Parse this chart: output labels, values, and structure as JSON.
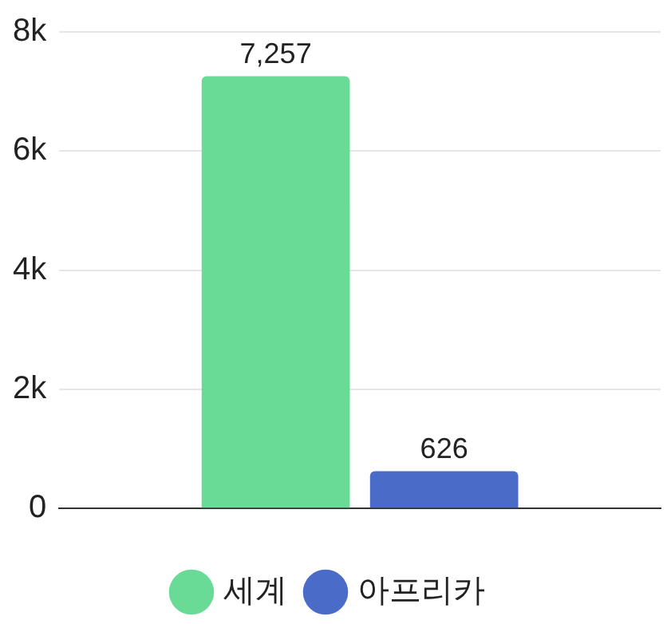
{
  "chart_data": {
    "type": "bar",
    "categories": [
      null
    ],
    "series": [
      {
        "name": "세계",
        "color": "#6adb97",
        "values": [
          7257
        ],
        "value_labels": [
          "7,257"
        ]
      },
      {
        "name": "아프리카",
        "color": "#4a6cc8",
        "values": [
          626
        ],
        "value_labels": [
          "626"
        ]
      }
    ],
    "ylim": [
      0,
      8000
    ],
    "yticks": [
      {
        "value": 0,
        "label": "0"
      },
      {
        "value": 2000,
        "label": "2k"
      },
      {
        "value": 4000,
        "label": "4k"
      },
      {
        "value": 6000,
        "label": "6k"
      },
      {
        "value": 8000,
        "label": "8k"
      }
    ],
    "grid": "y",
    "legend": "bottom"
  }
}
